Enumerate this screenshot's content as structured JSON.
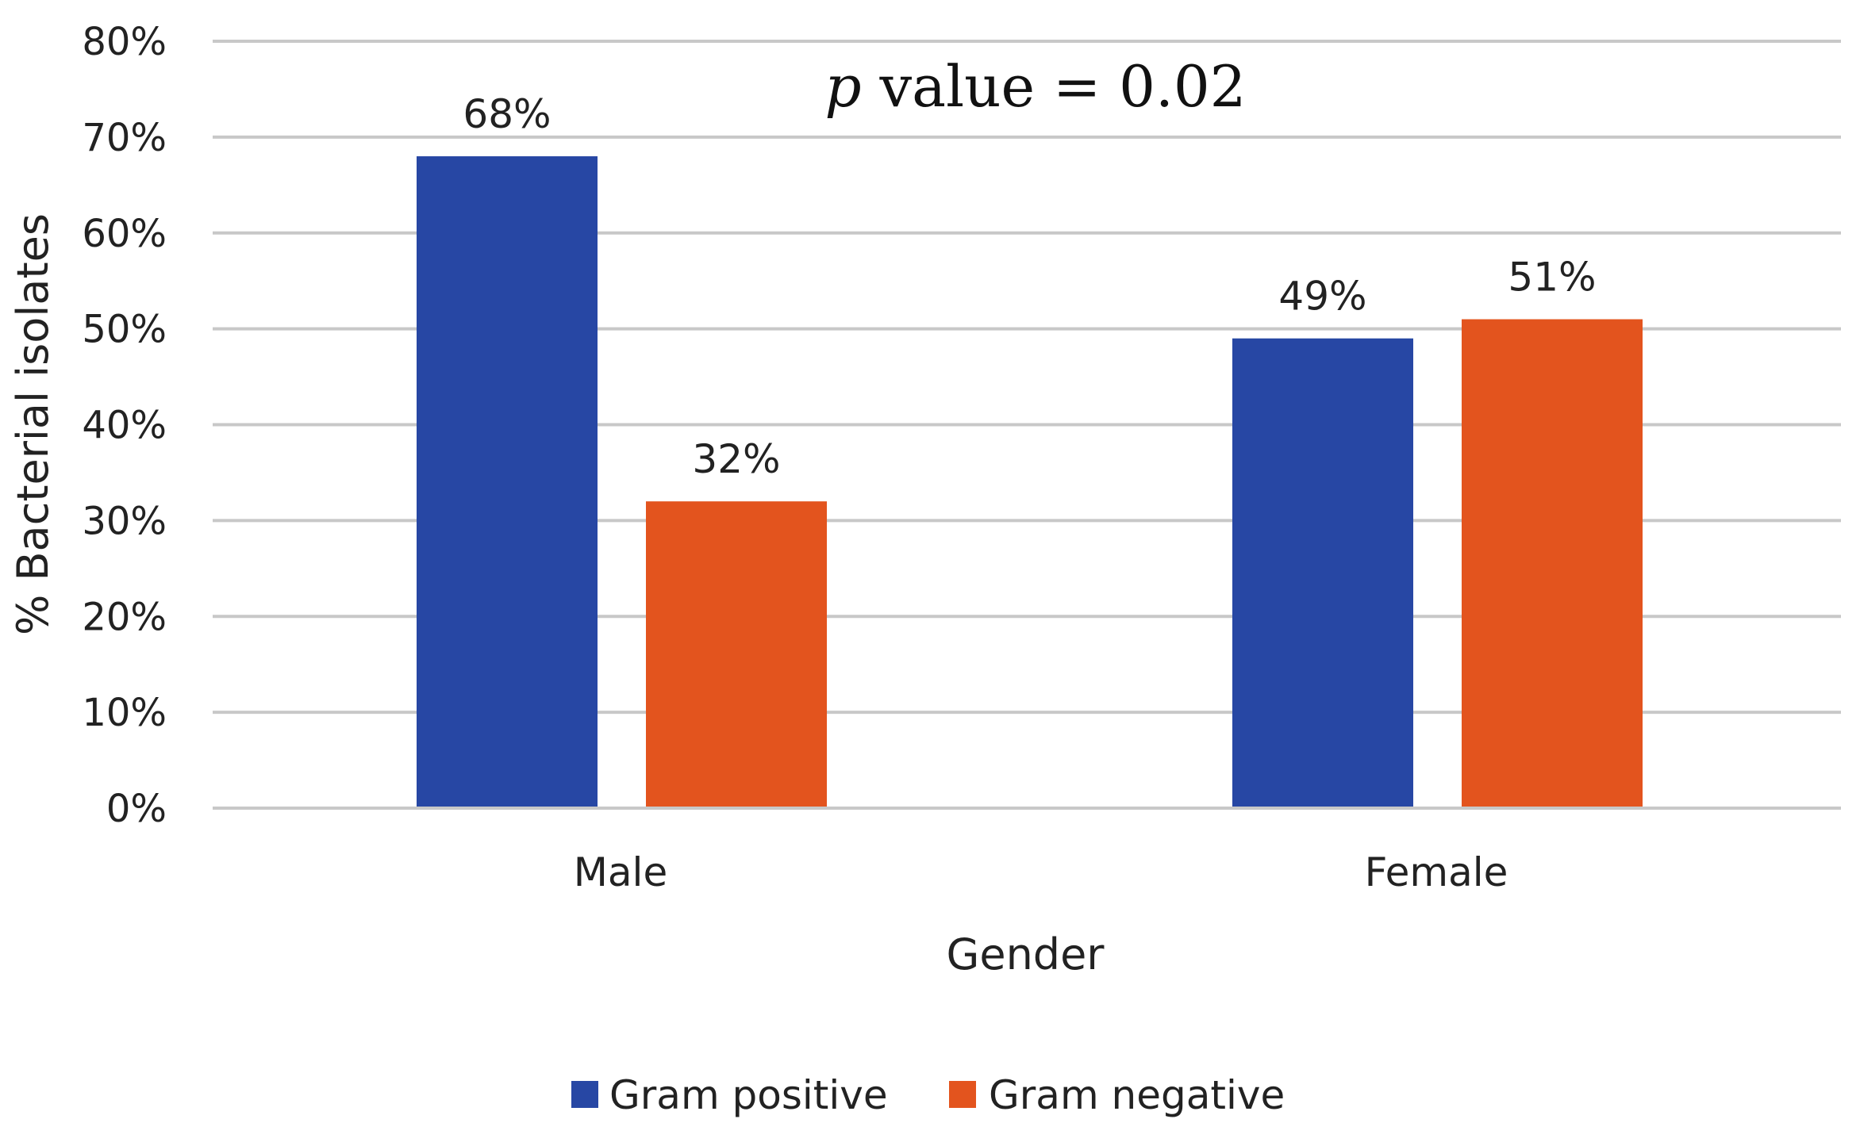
{
  "chart_data": {
    "type": "bar",
    "categories": [
      "Male",
      "Female"
    ],
    "series": [
      {
        "name": "Gram positive",
        "values": [
          68,
          49
        ],
        "labels": [
          "68%",
          "49%"
        ],
        "color": "#2747A4"
      },
      {
        "name": "Gram negative",
        "values": [
          32,
          51
        ],
        "labels": [
          "32%",
          "51%"
        ],
        "color": "#E3541E"
      }
    ],
    "title": "",
    "xlabel": "Gender",
    "ylabel": "% Bacterial isolates",
    "ylim": [
      0,
      80
    ],
    "yticks": [
      {
        "value": 0,
        "label": "0%"
      },
      {
        "value": 10,
        "label": "10%"
      },
      {
        "value": 20,
        "label": "20%"
      },
      {
        "value": 30,
        "label": "30%"
      },
      {
        "value": 40,
        "label": "40%"
      },
      {
        "value": 50,
        "label": "50%"
      },
      {
        "value": 60,
        "label": "60%"
      },
      {
        "value": 70,
        "label": "70%"
      },
      {
        "value": 80,
        "label": "80%"
      }
    ],
    "grid": true,
    "legend_position": "bottom",
    "annotation": {
      "italic_part": "p",
      "rest": " value = 0.02"
    },
    "gridline_color": "#c8c8c8"
  }
}
